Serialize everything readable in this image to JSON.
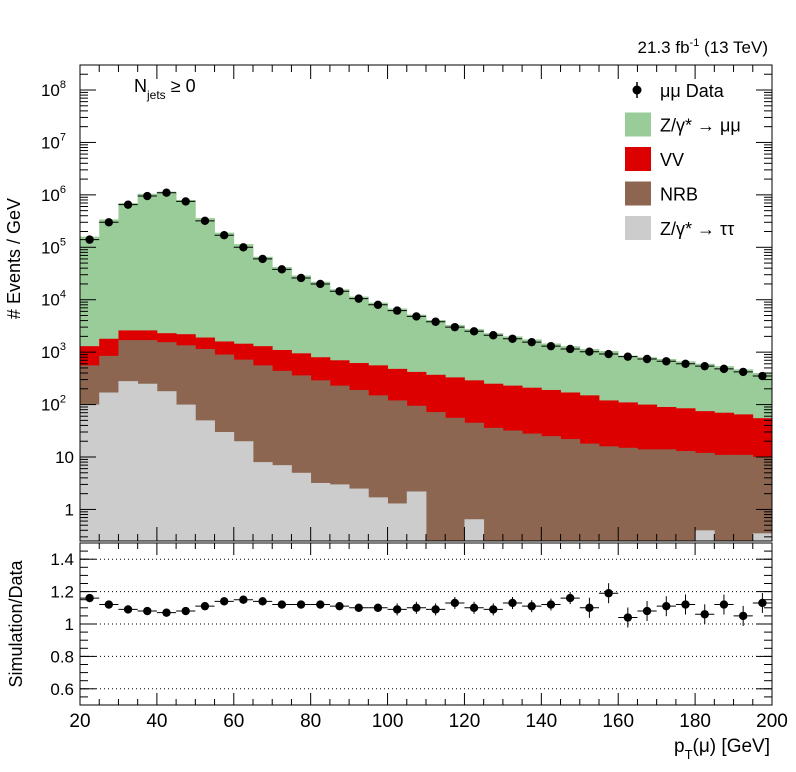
{
  "chart_data": [
    {
      "type": "bar",
      "subtype": "stacked-histogram-with-points",
      "log_y": true,
      "ylabel": "# Events / GeV",
      "ylim": [
        0.25,
        300000000
      ],
      "xlim": [
        20,
        200
      ],
      "bin_edges": [
        20,
        25,
        30,
        35,
        40,
        45,
        50,
        55,
        60,
        65,
        70,
        75,
        80,
        85,
        90,
        95,
        100,
        105,
        110,
        115,
        120,
        125,
        130,
        135,
        140,
        145,
        150,
        155,
        160,
        165,
        170,
        175,
        180,
        185,
        190,
        195,
        200
      ],
      "y_ticks": [
        {
          "label": "1",
          "value": 1
        },
        {
          "label": "10",
          "value": 10
        },
        {
          "label": "10",
          "exp": "2",
          "value": 100
        },
        {
          "label": "10",
          "exp": "3",
          "value": 1000
        },
        {
          "label": "10",
          "exp": "4",
          "value": 10000
        },
        {
          "label": "10",
          "exp": "5",
          "value": 100000
        },
        {
          "label": "10",
          "exp": "6",
          "value": 1000000
        },
        {
          "label": "10",
          "exp": "7",
          "value": 10000000
        },
        {
          "label": "10",
          "exp": "8",
          "value": 100000000
        }
      ],
      "lumi_label": {
        "pre": "21.3 fb",
        "exp": "-1",
        "post": " (13 TeV)"
      },
      "annotation": {
        "main": "N",
        "sub": "jets",
        "rest": " ≥ 0"
      },
      "legend_position": "top-right",
      "series": [
        {
          "name": "μμ Data",
          "kind": "points",
          "color": "#000000",
          "values": [
            140000,
            300000,
            650000,
            950000,
            1100000,
            750000,
            320000,
            170000,
            100000,
            60000,
            38000,
            26000,
            20000,
            14500,
            10500,
            8000,
            6200,
            4800,
            3800,
            3000,
            2500,
            2100,
            1800,
            1550,
            1300,
            1150,
            1020,
            920,
            820,
            740,
            670,
            600,
            540,
            480,
            420,
            350
          ]
        },
        {
          "name": "Z/γ* → μμ",
          "kind": "stack-total",
          "color": "#99cc99",
          "values": [
            160000,
            340000,
            700000,
            1050000,
            1150000,
            800000,
            360000,
            190000,
            115000,
            66000,
            42000,
            29000,
            22000,
            15800,
            11500,
            8800,
            6800,
            5200,
            4100,
            3300,
            2750,
            2300,
            2000,
            1750,
            1460,
            1300,
            1150,
            1050,
            860,
            800,
            740,
            670,
            600,
            540,
            470,
            400
          ]
        },
        {
          "name": "VV",
          "kind": "stack-total",
          "color": "#dd0000",
          "values": [
            1300,
            1800,
            2600,
            2600,
            2300,
            2200,
            1900,
            1600,
            1450,
            1300,
            1100,
            950,
            800,
            700,
            620,
            560,
            480,
            420,
            370,
            330,
            290,
            250,
            230,
            210,
            190,
            170,
            150,
            120,
            110,
            100,
            90,
            85,
            75,
            70,
            65,
            55
          ]
        },
        {
          "name": "NRB",
          "kind": "stack-total",
          "color": "#8c6650",
          "values": [
            560,
            850,
            1700,
            1700,
            1550,
            1350,
            1150,
            900,
            720,
            560,
            440,
            360,
            290,
            230,
            190,
            150,
            120,
            95,
            72,
            56,
            45,
            36,
            32,
            28,
            25,
            22,
            18,
            16,
            15,
            14,
            14,
            13,
            12,
            11,
            11,
            10
          ]
        },
        {
          "name": "Z/γ* → ττ",
          "kind": "stack-total",
          "color": "#cccccc",
          "values": [
            100,
            170,
            280,
            250,
            180,
            100,
            50,
            30,
            20,
            8,
            7,
            5,
            3.2,
            3,
            2.5,
            1.7,
            1.3,
            2.2,
            0.2,
            0.2,
            0.65,
            0.2,
            0.2,
            0.2,
            0.2,
            0.2,
            0.2,
            0.2,
            0.2,
            0.2,
            0.2,
            0.2,
            0.4,
            0.2,
            0.2,
            0.35
          ]
        }
      ]
    },
    {
      "type": "scatter",
      "ylabel": "Simulation/Data",
      "xlabel": {
        "main": "p",
        "sub": "T",
        "rest": "(μ) [GeV]"
      },
      "xlim": [
        20,
        200
      ],
      "ylim": [
        0.5,
        1.5
      ],
      "x_ticks": [
        20,
        40,
        60,
        80,
        100,
        120,
        140,
        160,
        180,
        200
      ],
      "y_ticks": [
        0.6,
        0.8,
        1,
        1.2,
        1.4
      ],
      "x": [
        22.5,
        27.5,
        32.5,
        37.5,
        42.5,
        47.5,
        52.5,
        57.5,
        62.5,
        67.5,
        72.5,
        77.5,
        82.5,
        87.5,
        92.5,
        97.5,
        102.5,
        107.5,
        112.5,
        117.5,
        122.5,
        127.5,
        132.5,
        137.5,
        142.5,
        147.5,
        152.5,
        157.5,
        162.5,
        167.5,
        172.5,
        177.5,
        182.5,
        187.5,
        192.5,
        197.5
      ],
      "values": [
        1.16,
        1.12,
        1.09,
        1.08,
        1.07,
        1.08,
        1.11,
        1.14,
        1.15,
        1.14,
        1.12,
        1.12,
        1.12,
        1.11,
        1.1,
        1.1,
        1.09,
        1.1,
        1.09,
        1.13,
        1.1,
        1.09,
        1.13,
        1.11,
        1.12,
        1.16,
        1.1,
        1.19,
        1.04,
        1.08,
        1.11,
        1.12,
        1.06,
        1.12,
        1.05,
        1.13
      ]
    }
  ]
}
